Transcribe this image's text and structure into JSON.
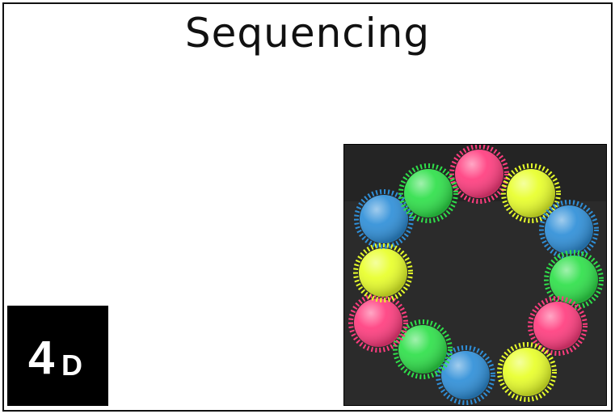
{
  "title": "Sequencing",
  "card": {
    "number": "4",
    "letter": "D"
  },
  "photo": {
    "background": "#2a2a2a",
    "balls": [
      {
        "color": "pink",
        "hex": "#ff3d7f"
      },
      {
        "color": "yellow",
        "hex": "#e8ff2a"
      },
      {
        "color": "blue",
        "hex": "#2f8fd8"
      },
      {
        "color": "green",
        "hex": "#2fe04a"
      },
      {
        "color": "pink",
        "hex": "#ff3d7f"
      },
      {
        "color": "yellow",
        "hex": "#e8ff2a"
      },
      {
        "color": "blue",
        "hex": "#2f8fd8"
      },
      {
        "color": "green",
        "hex": "#2fe04a"
      },
      {
        "color": "pink",
        "hex": "#ff3d7f"
      },
      {
        "color": "yellow",
        "hex": "#e8ff2a"
      },
      {
        "color": "blue",
        "hex": "#2f8fd8"
      },
      {
        "color": "green",
        "hex": "#2fe04a"
      }
    ]
  }
}
